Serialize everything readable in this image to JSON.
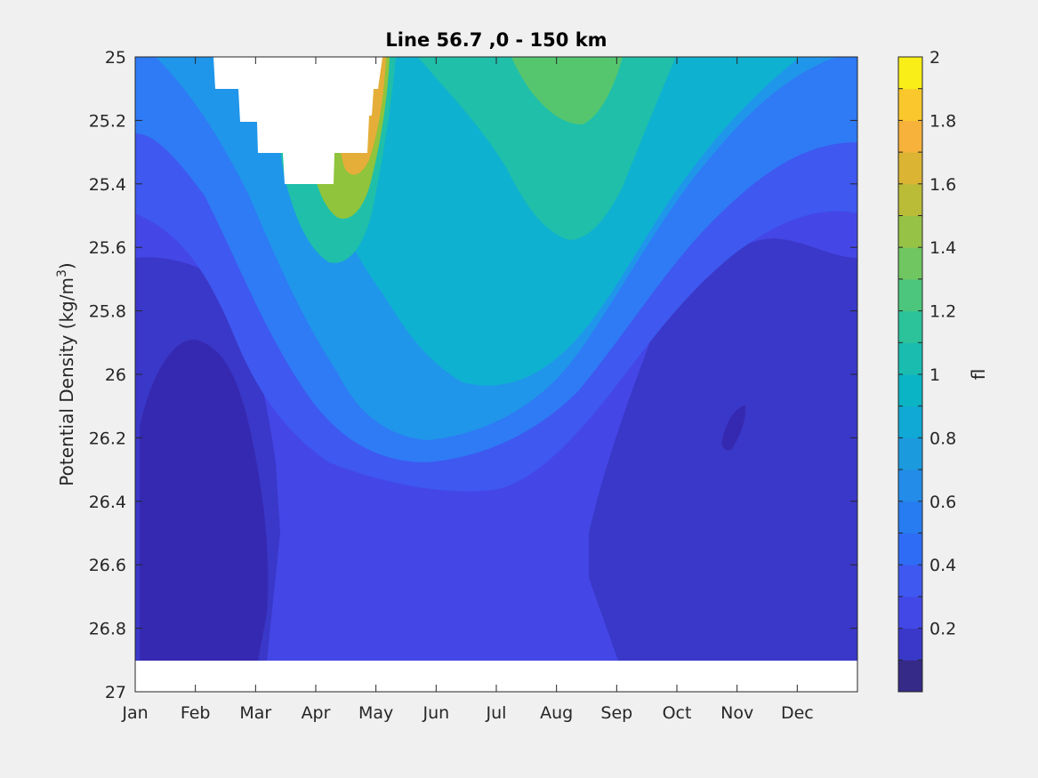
{
  "chart_data": {
    "type": "heatmap",
    "subtype": "filled-contour",
    "title": "Line 56.7 ,0 - 150 km",
    "xlabel": "",
    "ylabel": "Potential Density (kg/m",
    "ylabel_sup": "3",
    "ylabel_close": ")",
    "x_tick_labels": [
      "Jan",
      "Feb",
      "Mar",
      "Apr",
      "May",
      "Jun",
      "Jul",
      "Aug",
      "Sep",
      "Oct",
      "Nov",
      "Dec"
    ],
    "y_ticks": [
      25,
      25.2,
      25.4,
      25.6,
      25.8,
      26,
      26.2,
      26.4,
      26.6,
      26.8,
      27
    ],
    "y_tick_labels": [
      "25",
      "25.2",
      "25.4",
      "25.6",
      "25.8",
      "26",
      "26.2",
      "26.4",
      "26.6",
      "26.8",
      "27"
    ],
    "ylim": [
      25,
      27
    ],
    "y_reversed": true,
    "colorbar": {
      "label": "fl",
      "range": [
        0,
        2
      ],
      "ticks": [
        0.2,
        0.4,
        0.6,
        0.8,
        1,
        1.2,
        1.4,
        1.6,
        1.8,
        2
      ],
      "tick_labels": [
        "0.2",
        "0.4",
        "0.6",
        "0.8",
        "1",
        "1.2",
        "1.4",
        "1.6",
        "1.8",
        "2"
      ],
      "levels": 20,
      "colormap": "parula"
    },
    "regions": [
      {
        "description": "background low values",
        "value": 0.25
      },
      {
        "description": "deep minimum Jan-Mar",
        "value": 0.05
      },
      {
        "description": "deep minimum Sep-Dec",
        "value": 0.12
      },
      {
        "description": "band along U-shaped maximum",
        "value": 0.6
      },
      {
        "description": "summer near-surface maximum Jul-Aug",
        "value": 1.3
      },
      {
        "description": "spring bloom edge Apr-May",
        "value": 1.75
      }
    ]
  }
}
